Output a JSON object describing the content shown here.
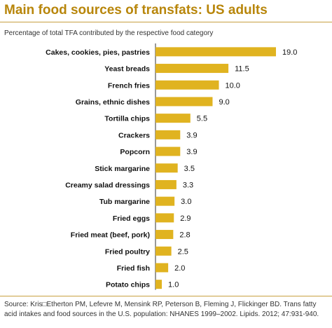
{
  "title": "Main food sources of transfats: US adults",
  "subtitle": "Percentage of total TFA contributed by the respective food category",
  "source": "Source: Kris□Etherton PM, Lefevre M, Mensink RP, Peterson B, Fleming J, Flickinger BD. Trans fatty acid intakes and food sources in the U.S. population: NHANES 1999–2002. Lipids. 2012; 47:931-940.",
  "colors": {
    "bar": "#e0b320",
    "title": "#b8860b",
    "rule": "#c8a040"
  },
  "chart_data": {
    "type": "bar",
    "orientation": "horizontal",
    "title": "Main food sources of transfats: US adults",
    "subtitle": "Percentage of total TFA contributed by the respective food category",
    "xlabel": "",
    "ylabel": "",
    "xlim": [
      0,
      19
    ],
    "grid": false,
    "categories": [
      "Cakes, cookies, pies, pastries",
      "Yeast breads",
      "French fries",
      "Grains, ethnic dishes",
      "Tortilla chips",
      "Crackers",
      "Popcorn",
      "Stick margarine",
      "Creamy salad dressings",
      "Tub margarine",
      "Fried eggs",
      "Fried meat (beef, pork)",
      "Fried poultry",
      "Fried fish",
      "Potato chips"
    ],
    "values": [
      19.0,
      11.5,
      10.0,
      9.0,
      5.5,
      3.9,
      3.9,
      3.5,
      3.3,
      3.0,
      2.9,
      2.8,
      2.5,
      2.0,
      1.0
    ],
    "value_labels": [
      "19.0",
      "11.5",
      "10.0",
      "9.0",
      "5.5",
      "3.9",
      "3.9",
      "3.5",
      "3.3",
      "3.0",
      "2.9",
      "2.8",
      "2.5",
      "2.0",
      "1.0"
    ]
  }
}
